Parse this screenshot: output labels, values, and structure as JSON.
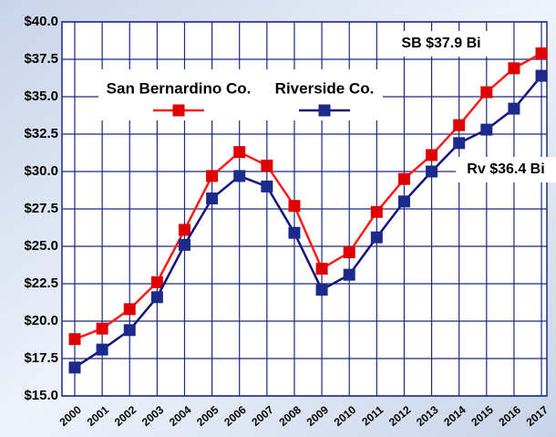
{
  "chart_data": {
    "type": "line",
    "categories": [
      "2000",
      "2001",
      "2002",
      "2003",
      "2004",
      "2005",
      "2006",
      "2007",
      "2008",
      "2009",
      "2010",
      "2011",
      "2012",
      "2013",
      "2014",
      "2015",
      "2016",
      "2017"
    ],
    "series": [
      {
        "name": "San Bernardino Co.",
        "color": "#ff1a1a",
        "marker_color": "#e00000",
        "values": [
          18.8,
          19.5,
          20.8,
          22.6,
          26.1,
          29.7,
          31.3,
          30.4,
          27.7,
          23.5,
          24.6,
          27.3,
          29.5,
          31.1,
          33.1,
          35.3,
          36.9,
          37.9
        ]
      },
      {
        "name": "Riverside Co.",
        "color": "#12127a",
        "marker_color": "#1c2a8c",
        "values": [
          16.9,
          18.1,
          19.4,
          21.6,
          25.1,
          28.2,
          29.7,
          29.0,
          25.9,
          22.1,
          23.1,
          25.6,
          28.0,
          30.0,
          31.9,
          32.8,
          34.2,
          36.4
        ]
      }
    ],
    "ylim": [
      15,
      40
    ],
    "yticks": [
      {
        "value": 15,
        "label": "$15.0"
      },
      {
        "value": 17.5,
        "label": "$17.5"
      },
      {
        "value": 20,
        "label": "$20.0"
      },
      {
        "value": 22.5,
        "label": "$22.5"
      },
      {
        "value": 25,
        "label": "$25.0"
      },
      {
        "value": 27.5,
        "label": "$27.5"
      },
      {
        "value": 30,
        "label": "$30.0"
      },
      {
        "value": 32.5,
        "label": "$32.5"
      },
      {
        "value": 35,
        "label": "$35.0"
      },
      {
        "value": 37.5,
        "label": "$37.5"
      },
      {
        "value": 40,
        "label": "$40.0"
      }
    ],
    "annotations": [
      "SB $37.9 Bi",
      "Rv $36.4 Bi"
    ],
    "grid": true
  }
}
